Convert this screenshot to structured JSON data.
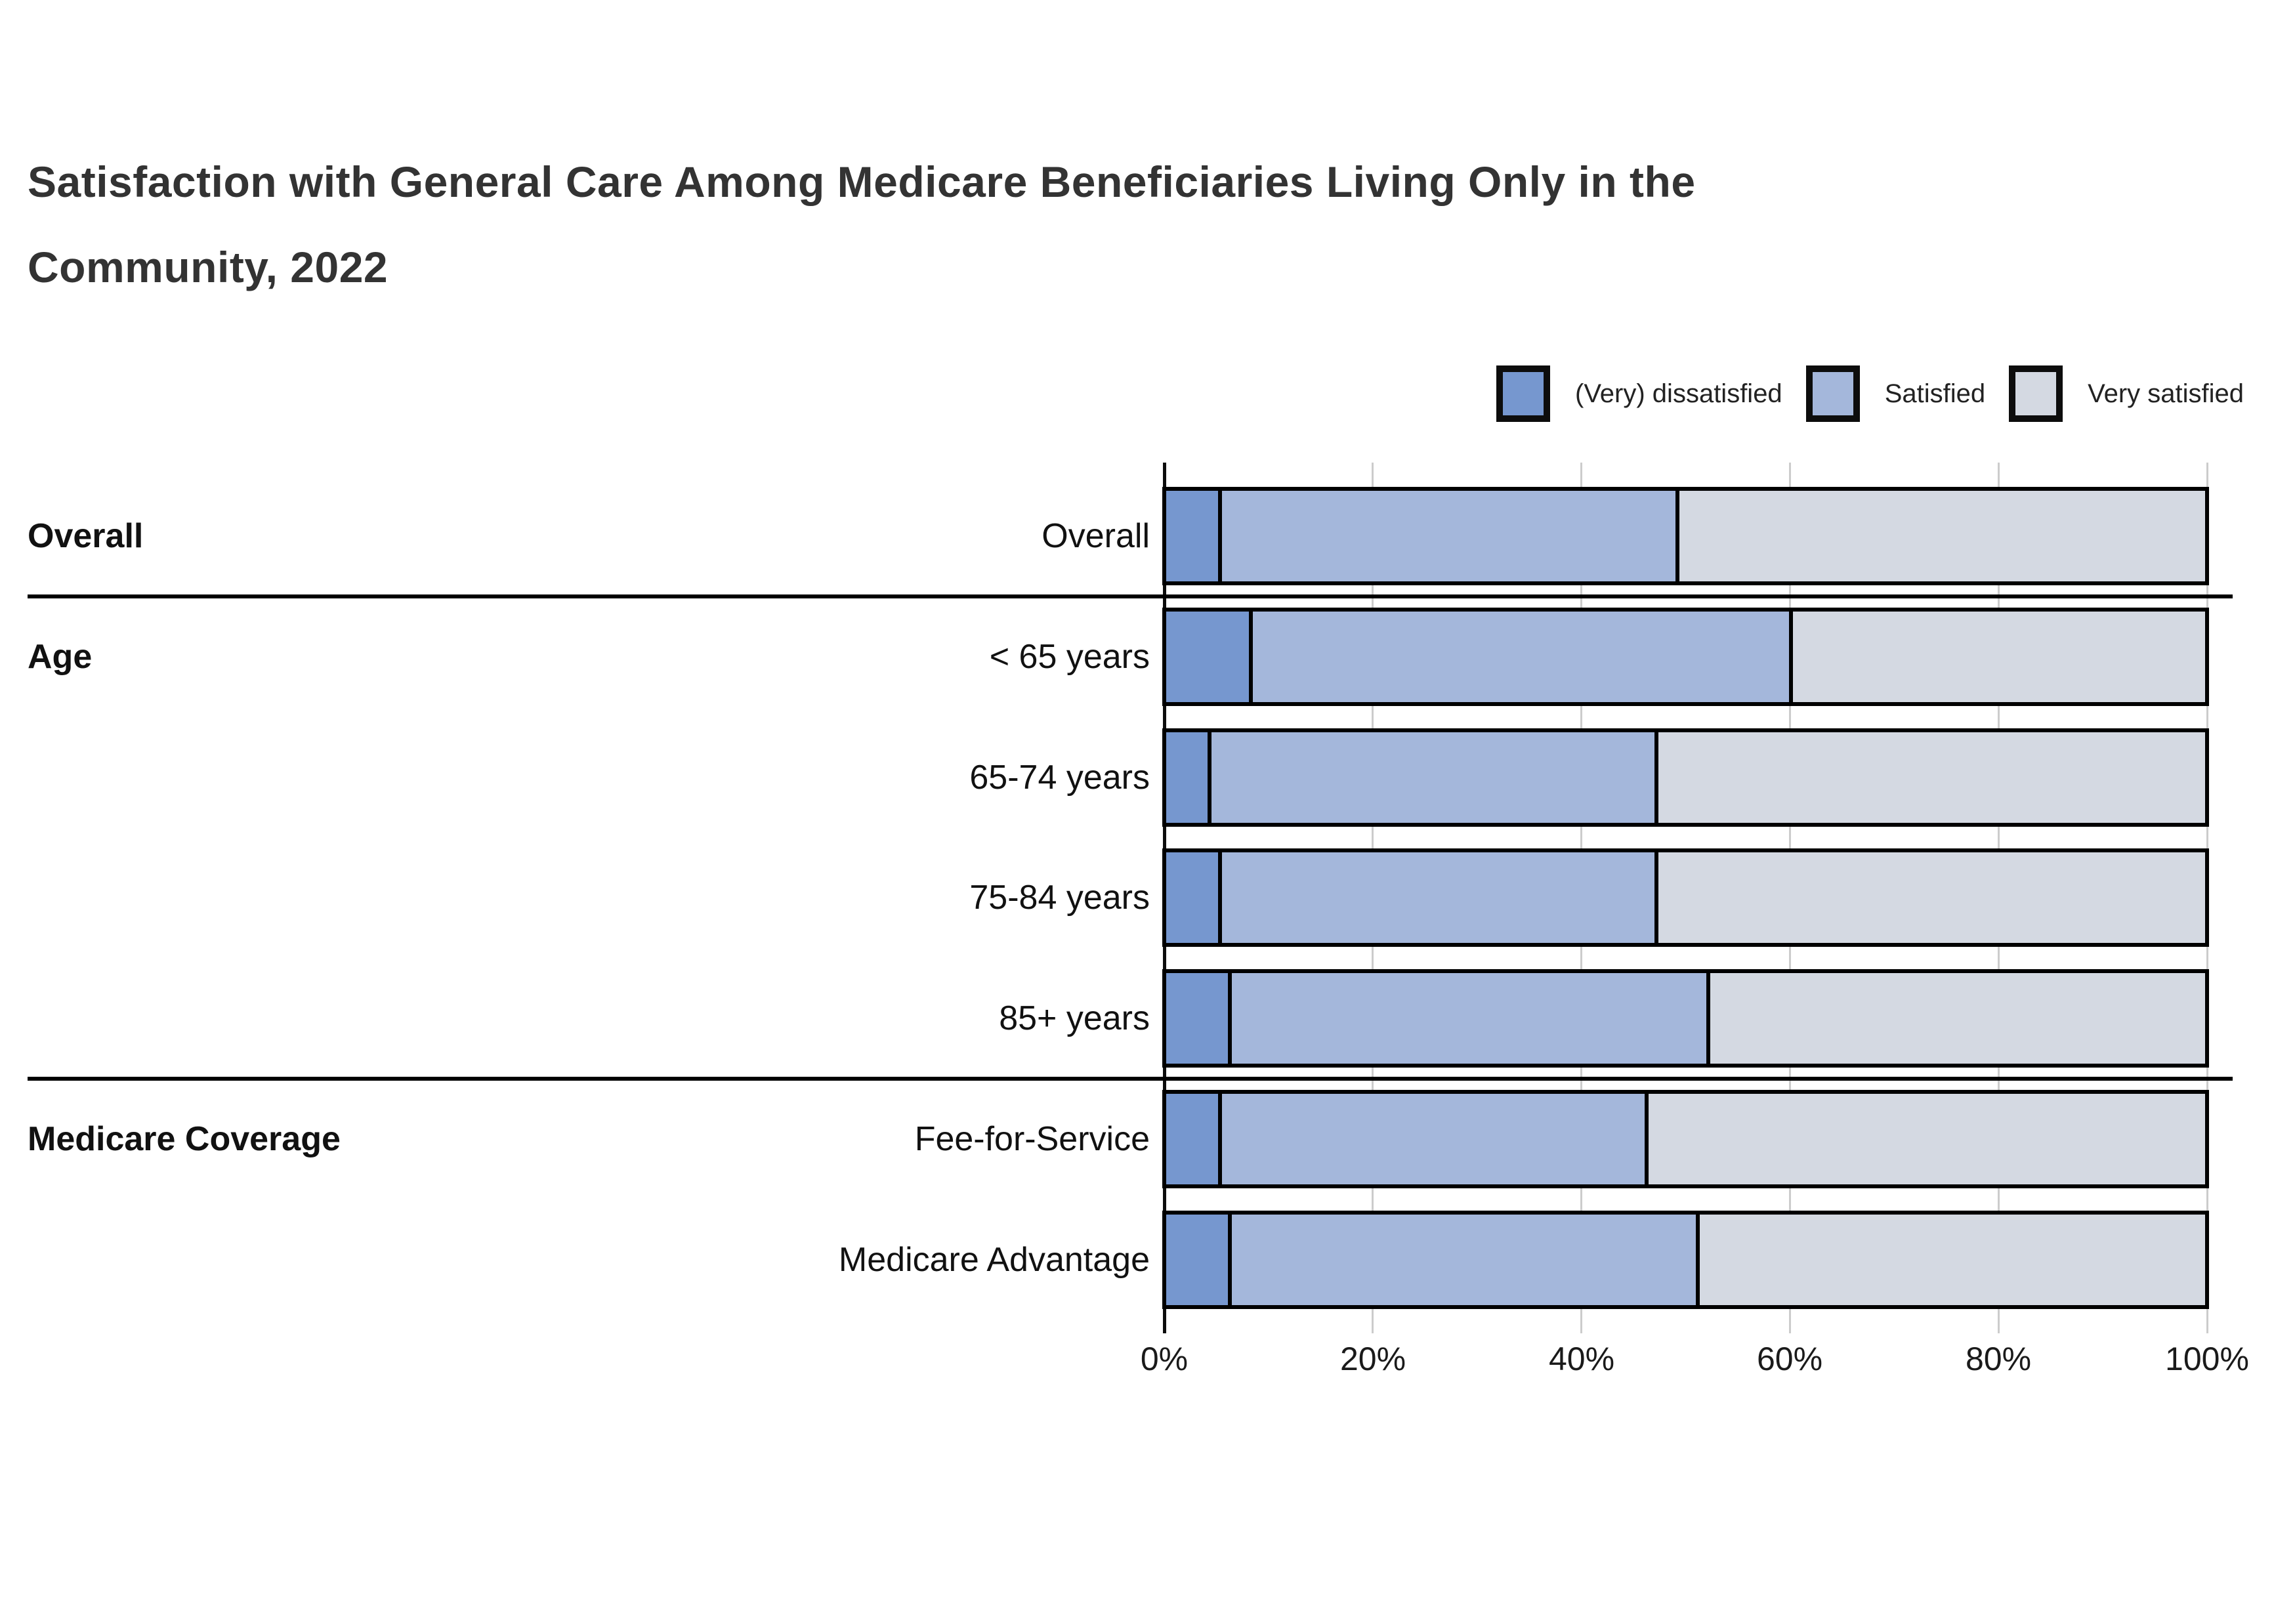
{
  "title": {
    "line1": "Satisfaction with General Care Among Medicare Beneficiaries Living Only in the",
    "line2": "Community, 2022"
  },
  "colors": {
    "dissatisfied": "#7697CF",
    "satisfied": "#A4B7DB",
    "very_satisfied": "#D4D9E2",
    "bar_border": "#000000",
    "gridline": "#CCCCCC",
    "axis_line": "#0D0D0D",
    "title_text": "#333333",
    "label_text": "#111111"
  },
  "chart_data": {
    "type": "bar",
    "orientation": "horizontal",
    "stacked": true,
    "title": "Satisfaction with General Care Among Medicare Beneficiaries Living Only in the Community, 2022",
    "categories": [
      "Overall",
      "< 65 years",
      "65-74 years",
      "75-84 years",
      "85+ years",
      "Fee-for-Service",
      "Medicare Advantage"
    ],
    "groups": [
      {
        "label": "Overall",
        "first_row": 0,
        "last_row": 0
      },
      {
        "label": "Age",
        "first_row": 1,
        "last_row": 4
      },
      {
        "label": "Medicare Coverage",
        "first_row": 5,
        "last_row": 6
      }
    ],
    "series": [
      {
        "name": "(Very) dissatisfied",
        "color": "#7697CF",
        "values": [
          5,
          8,
          4,
          5,
          6,
          5,
          6
        ]
      },
      {
        "name": "Satisfied",
        "color": "#A4B7DB",
        "values": [
          44,
          52,
          43,
          42,
          46,
          41,
          45
        ]
      },
      {
        "name": "Very satisfied",
        "color": "#D4D9E2",
        "values": [
          51,
          40,
          53,
          53,
          48,
          54,
          49
        ]
      }
    ],
    "x_ticks": [
      "0%",
      "20%",
      "40%",
      "60%",
      "80%",
      "100%"
    ],
    "xlim": [
      0,
      100
    ],
    "grid": true,
    "legend_position": "top-right",
    "units": "%"
  }
}
